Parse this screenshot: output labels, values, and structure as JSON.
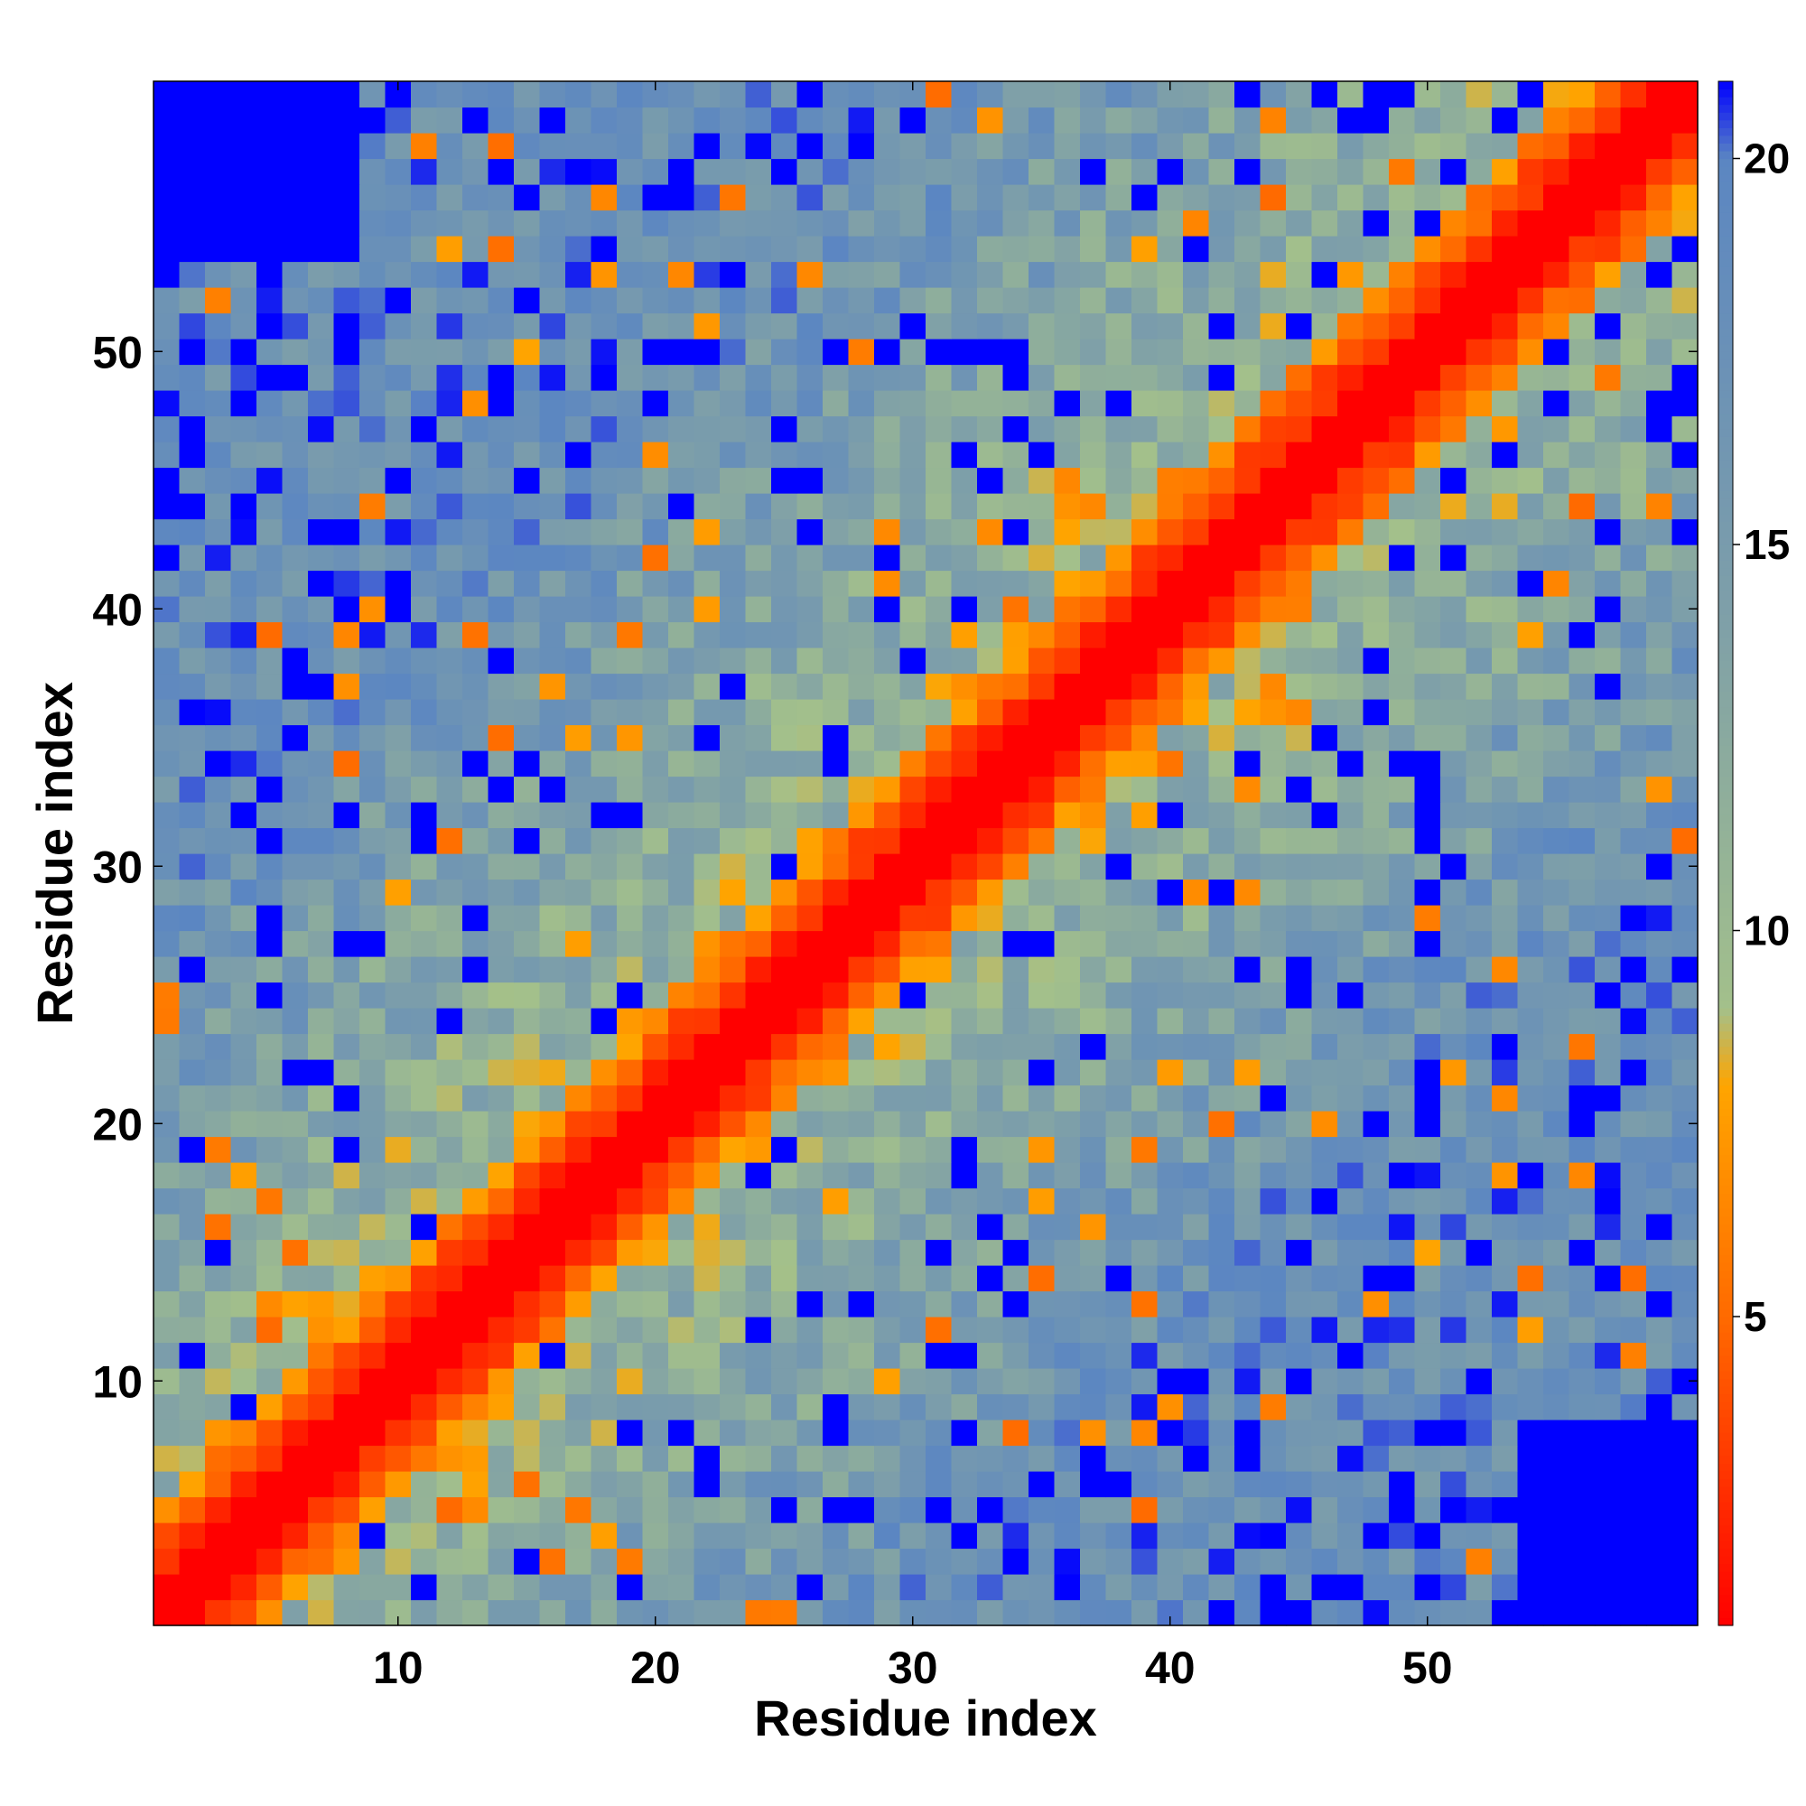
{
  "chart_data": {
    "type": "heatmap",
    "title": "",
    "xlabel": "Residue index",
    "ylabel": "Residue index",
    "n_residues": 60,
    "xlim": [
      1,
      60
    ],
    "ylim": [
      1,
      60
    ],
    "x_ticks": [
      10,
      20,
      30,
      40,
      50
    ],
    "y_ticks": [
      10,
      20,
      30,
      40,
      50
    ],
    "grid": false,
    "colorbar": {
      "ticks": [
        5,
        10,
        15,
        20
      ],
      "range": [
        1,
        21
      ],
      "stops": [
        {
          "value": 1,
          "color": "#ff0000"
        },
        {
          "value": 5,
          "color": "#ff6a00"
        },
        {
          "value": 8,
          "color": "#ffa500"
        },
        {
          "value": 9,
          "color": "#a3c08b"
        },
        {
          "value": 14,
          "color": "#7fa0a8"
        },
        {
          "value": 20,
          "color": "#5b86c2"
        },
        {
          "value": 21,
          "color": "#0000ff"
        }
      ]
    },
    "description_of_values": "Symmetric residue-residue distance matrix; red diagonal band (values ~1-4), orange contacts (~5-8), green/blue mid distances (~9-19), saturated blue (>=21) for far pairs.",
    "matrix_rows_y1_to_y60": [
      "RRRRSTTUUUUUUVVUUVWWWWWWYYYYZZ000000000000000000000000000001",
      "RRRRQSSTTTUUUVVVVWWWWWXXYYYYZZZZ00000000000000000000000000001",
      "RRRQQRSSTTTUUUUVVWWXXXXYYYZZZZZ00000000000000000000000000000"
    ]
  }
}
